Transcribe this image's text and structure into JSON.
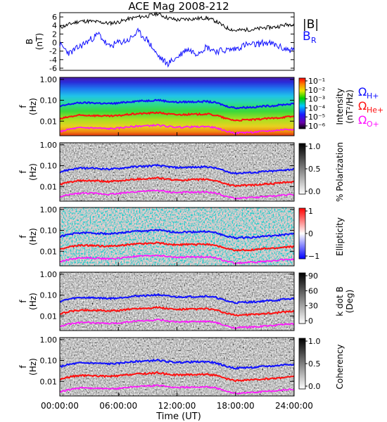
{
  "title": "ACE Mag 2008-212",
  "xaxis": {
    "label": "Time (UT)",
    "ticks": [
      "00:00:00",
      "06:00:00",
      "12:00:00",
      "18:00:00",
      "24:00:00"
    ],
    "range_hours": [
      0,
      24
    ]
  },
  "legend_top": {
    "b_total": "|B|",
    "b_r": "B",
    "b_r_sub": "R"
  },
  "gyro_labels": [
    {
      "omega": "Ω",
      "sub": "H+",
      "color": "#1010ff"
    },
    {
      "omega": "Ω",
      "sub": "He+",
      "color": "#ff1010"
    },
    {
      "omega": "Ω",
      "sub": "O+",
      "color": "#ff10ff"
    }
  ],
  "colors": {
    "b_total": "#000000",
    "b_r": "#1010ff",
    "h_plus": "#1010ff",
    "he_plus": "#ff1010",
    "o_plus": "#ff10ff"
  },
  "chart_data": [
    {
      "type": "line",
      "ylabel": "B",
      "yunit": "(nT)",
      "ylim": [
        -6.5,
        7
      ],
      "yticks": [
        "6",
        "4",
        "2",
        "0",
        "-2",
        "-4",
        "-6"
      ],
      "ytick_values": [
        6,
        4,
        2,
        0,
        -2,
        -4,
        -6
      ],
      "x_hours": [
        0,
        1,
        2,
        3,
        4,
        5,
        6,
        7,
        8,
        9,
        10,
        11,
        12,
        13,
        14,
        15,
        16,
        17,
        18,
        19,
        20,
        21,
        22,
        23,
        24
      ],
      "series": [
        {
          "name": "|B|",
          "values": [
            3.5,
            4.3,
            5.0,
            5.0,
            4.8,
            4.5,
            4.8,
            5.5,
            6.0,
            6.2,
            6.8,
            5.8,
            5.3,
            5.5,
            5.6,
            5.8,
            5.0,
            3.5,
            2.8,
            3.0,
            3.1,
            3.5,
            3.6,
            4.1,
            4.4
          ]
        },
        {
          "name": "B_R",
          "values": [
            -0.5,
            -2.5,
            -1.0,
            0.5,
            2.0,
            -1.0,
            0.0,
            0.5,
            2.5,
            0.5,
            -3.0,
            -5.0,
            -3.5,
            -1.5,
            -2.5,
            -1.0,
            -2.0,
            -1.8,
            -1.5,
            -0.5,
            -0.5,
            0.0,
            -0.5,
            -1.5,
            -1.8
          ]
        }
      ]
    },
    {
      "type": "heatmap",
      "ylabel": "f",
      "yunit": "(Hz)",
      "log_y": true,
      "yticks": [
        "1.00",
        "0.10",
        "0.01"
      ],
      "colorbar": {
        "label": "Intensity",
        "unit": "(nT²/Hz)",
        "ticks": [
          "10⁻¹",
          "10⁻²",
          "10⁻³",
          "10⁻⁴",
          "10⁻⁵",
          "10⁻⁶"
        ],
        "range": [
          1e-06,
          0.3
        ],
        "palette": "rainbow"
      }
    },
    {
      "type": "heatmap",
      "ylabel": "f",
      "yunit": "(Hz)",
      "log_y": true,
      "yticks": [
        "1.00",
        "0.10",
        "0.01"
      ],
      "colorbar": {
        "label": "% Polarization",
        "unit": "",
        "ticks": [
          "1.0",
          "0.5",
          "0.0"
        ],
        "range": [
          0,
          1
        ],
        "palette": "gray"
      }
    },
    {
      "type": "heatmap",
      "ylabel": "f",
      "yunit": "(Hz)",
      "log_y": true,
      "yticks": [
        "1.00",
        "0.10",
        "0.01"
      ],
      "colorbar": {
        "label": "Ellipticity",
        "unit": "",
        "ticks": [
          "1",
          "0",
          "−1"
        ],
        "range": [
          -1,
          1
        ],
        "palette": "bluewhitered"
      }
    },
    {
      "type": "heatmap",
      "ylabel": "f",
      "yunit": "(Hz)",
      "log_y": true,
      "yticks": [
        "1.00",
        "0.10",
        "0.01"
      ],
      "colorbar": {
        "label": "k dot B",
        "unit": "(Deg)",
        "ticks": [
          "90",
          "60",
          "30",
          "0"
        ],
        "range": [
          0,
          90
        ],
        "palette": "gray"
      }
    },
    {
      "type": "heatmap",
      "ylabel": "f",
      "yunit": "(Hz)",
      "log_y": true,
      "yticks": [
        "1.00",
        "0.10",
        "0.01"
      ],
      "colorbar": {
        "label": "Coherency",
        "unit": "",
        "ticks": [
          "1.0",
          "0.5",
          "0.0"
        ],
        "range": [
          0,
          1
        ],
        "palette": "gray"
      }
    }
  ],
  "gyrofrequency_hz": {
    "x_hours": [
      0,
      1,
      2,
      3,
      4,
      5,
      6,
      7,
      8,
      9,
      10,
      11,
      12,
      13,
      14,
      15,
      16,
      17,
      18,
      19,
      20,
      21,
      22,
      23,
      24
    ],
    "h_plus": [
      0.05,
      0.065,
      0.076,
      0.076,
      0.073,
      0.069,
      0.073,
      0.084,
      0.092,
      0.095,
      0.104,
      0.089,
      0.081,
      0.084,
      0.085,
      0.089,
      0.076,
      0.053,
      0.043,
      0.046,
      0.047,
      0.053,
      0.055,
      0.063,
      0.067
    ],
    "he_plus": [
      0.0125,
      0.0163,
      0.019,
      0.019,
      0.0183,
      0.0173,
      0.0183,
      0.021,
      0.023,
      0.0238,
      0.026,
      0.0223,
      0.0203,
      0.021,
      0.0213,
      0.0223,
      0.019,
      0.0133,
      0.0108,
      0.0115,
      0.0118,
      0.0133,
      0.0138,
      0.0158,
      0.0168
    ],
    "o_plus": [
      0.0031,
      0.0041,
      0.0048,
      0.0048,
      0.0046,
      0.0043,
      0.0046,
      0.0053,
      0.0058,
      0.006,
      0.0065,
      0.0056,
      0.0051,
      0.0053,
      0.0053,
      0.0056,
      0.0048,
      0.0033,
      0.0027,
      0.0029,
      0.003,
      0.0033,
      0.0035,
      0.004,
      0.0042
    ]
  }
}
